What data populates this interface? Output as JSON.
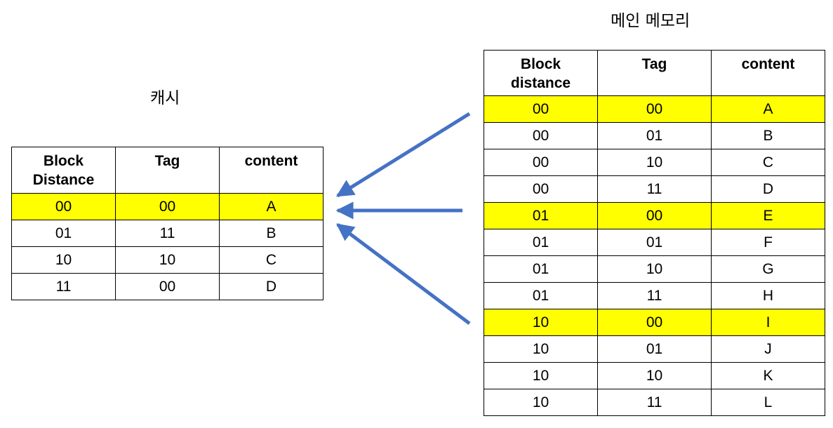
{
  "cache": {
    "title": "캐시",
    "headers": [
      "Block\nDistance",
      "Tag",
      "content"
    ],
    "rows": [
      {
        "block": "00",
        "tag": "00",
        "content": "A",
        "highlight": true
      },
      {
        "block": "01",
        "tag": "11",
        "content": "B",
        "highlight": false
      },
      {
        "block": "10",
        "tag": "10",
        "content": "C",
        "highlight": false
      },
      {
        "block": "11",
        "tag": "00",
        "content": "D",
        "highlight": false
      }
    ]
  },
  "memory": {
    "title": "메인 메모리",
    "headers": [
      "Block\ndistance",
      "Tag",
      "content"
    ],
    "rows": [
      {
        "block": "00",
        "tag": "00",
        "content": "A",
        "highlight": true
      },
      {
        "block": "00",
        "tag": "01",
        "content": "B",
        "highlight": false
      },
      {
        "block": "00",
        "tag": "10",
        "content": "C",
        "highlight": false
      },
      {
        "block": "00",
        "tag": "11",
        "content": "D",
        "highlight": false
      },
      {
        "block": "01",
        "tag": "00",
        "content": "E",
        "highlight": true
      },
      {
        "block": "01",
        "tag": "01",
        "content": "F",
        "highlight": false
      },
      {
        "block": "01",
        "tag": "10",
        "content": "G",
        "highlight": false
      },
      {
        "block": "01",
        "tag": "11",
        "content": "H",
        "highlight": false
      },
      {
        "block": "10",
        "tag": "00",
        "content": "I",
        "highlight": true
      },
      {
        "block": "10",
        "tag": "01",
        "content": "J",
        "highlight": false
      },
      {
        "block": "10",
        "tag": "10",
        "content": "K",
        "highlight": false
      },
      {
        "block": "10",
        "tag": "11",
        "content": "L",
        "highlight": false
      }
    ]
  },
  "colors": {
    "highlight": "#ffff00",
    "arrow": "#4472c4",
    "border": "#000000"
  }
}
